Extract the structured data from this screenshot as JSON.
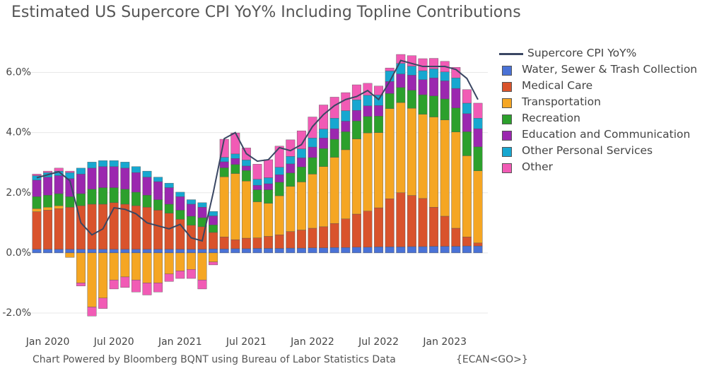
{
  "chart_data": {
    "type": "bar",
    "title": "Estimated US Supercore CPI YoY% Including Topline Contributions",
    "footnote": "Chart Powered by Bloomberg BQNT using Bureau of Labor Statistics Data",
    "code": "{ECAN<GO>}",
    "barmode": "relative",
    "grid": true,
    "x": [
      "2019-12",
      "2020-01",
      "2020-02",
      "2020-03",
      "2020-04",
      "2020-05",
      "2020-06",
      "2020-07",
      "2020-08",
      "2020-09",
      "2020-10",
      "2020-11",
      "2020-12",
      "2021-01",
      "2021-02",
      "2021-03",
      "2021-04",
      "2021-05",
      "2021-06",
      "2021-07",
      "2021-08",
      "2021-09",
      "2021-10",
      "2021-11",
      "2021-12",
      "2022-01",
      "2022-02",
      "2022-03",
      "2022-04",
      "2022-05",
      "2022-06",
      "2022-07",
      "2022-08",
      "2022-09",
      "2022-10",
      "2022-11",
      "2022-12",
      "2023-01",
      "2023-02",
      "2023-03",
      "2023-04"
    ],
    "xticks": [
      {
        "value": "2020-01",
        "label": "Jan 2020"
      },
      {
        "value": "2020-07",
        "label": "Jul 2020"
      },
      {
        "value": "2021-01",
        "label": "Jan 2021"
      },
      {
        "value": "2021-07",
        "label": "Jul 2021"
      },
      {
        "value": "2022-01",
        "label": "Jan 2022"
      },
      {
        "value": "2022-07",
        "label": "Jul 2022"
      },
      {
        "value": "2023-01",
        "label": "Jan 2023"
      }
    ],
    "ylim": [
      -2.4,
      7.0
    ],
    "yticks": [
      {
        "value": -2,
        "label": "-2.0%"
      },
      {
        "value": 0,
        "label": "0.0%"
      },
      {
        "value": 2,
        "label": "2.0%"
      },
      {
        "value": 4,
        "label": "4.0%"
      },
      {
        "value": 6,
        "label": "6.0%"
      }
    ],
    "series": [
      {
        "name": "Supercore CPI YoY%",
        "type": "line",
        "color": "#3a4763",
        "values": [
          2.5,
          2.6,
          2.7,
          2.4,
          1.0,
          0.6,
          0.8,
          1.5,
          1.45,
          1.3,
          1.0,
          0.9,
          0.8,
          0.95,
          0.5,
          0.4,
          2.0,
          3.8,
          4.0,
          3.3,
          3.05,
          3.1,
          3.5,
          3.4,
          3.6,
          4.2,
          4.6,
          4.9,
          5.1,
          5.2,
          5.4,
          5.1,
          5.7,
          6.4,
          6.3,
          6.2,
          6.2,
          6.2,
          6.1,
          5.8,
          5.1
        ]
      },
      {
        "name": "Water, Sewer & Trash Collection",
        "type": "bar",
        "color": "#4a72d6",
        "values": [
          0.12,
          0.12,
          0.12,
          0.12,
          0.12,
          0.12,
          0.12,
          0.12,
          0.12,
          0.12,
          0.12,
          0.12,
          0.12,
          0.12,
          0.12,
          0.12,
          0.13,
          0.13,
          0.14,
          0.14,
          0.15,
          0.15,
          0.15,
          0.16,
          0.16,
          0.17,
          0.17,
          0.18,
          0.18,
          0.19,
          0.19,
          0.2,
          0.2,
          0.2,
          0.21,
          0.21,
          0.22,
          0.22,
          0.22,
          0.23,
          0.23
        ]
      },
      {
        "name": "Medical Care",
        "type": "bar",
        "color": "#d9532c",
        "values": [
          1.25,
          1.3,
          1.35,
          1.4,
          1.45,
          1.5,
          1.5,
          1.55,
          1.5,
          1.45,
          1.4,
          1.3,
          1.2,
          1.0,
          0.8,
          0.75,
          0.55,
          0.4,
          0.3,
          0.35,
          0.35,
          0.4,
          0.45,
          0.55,
          0.6,
          0.65,
          0.7,
          0.8,
          0.95,
          1.1,
          1.2,
          1.3,
          1.6,
          1.8,
          1.7,
          1.6,
          1.3,
          1.0,
          0.6,
          0.3,
          0.1
        ]
      },
      {
        "name": "Transportation",
        "type": "bar",
        "color": "#f5a623",
        "values": [
          0.1,
          0.1,
          0.1,
          -0.15,
          -1.0,
          -1.8,
          -1.5,
          -0.9,
          -0.8,
          -0.9,
          -1.0,
          -1.0,
          -0.7,
          -0.6,
          -0.55,
          -0.9,
          -0.3,
          2.0,
          2.2,
          1.9,
          1.2,
          1.1,
          1.3,
          1.5,
          1.6,
          1.8,
          2.0,
          2.2,
          2.3,
          2.5,
          2.6,
          2.5,
          3.0,
          3.0,
          2.9,
          2.8,
          3.0,
          3.2,
          3.2,
          2.7,
          2.4
        ]
      },
      {
        "name": "Recreation",
        "type": "bar",
        "color": "#2ca02c",
        "values": [
          0.4,
          0.4,
          0.4,
          0.35,
          0.4,
          0.5,
          0.55,
          0.5,
          0.5,
          0.45,
          0.4,
          0.35,
          0.3,
          0.3,
          0.3,
          0.3,
          0.25,
          0.3,
          0.3,
          0.35,
          0.4,
          0.45,
          0.45,
          0.45,
          0.5,
          0.55,
          0.6,
          0.6,
          0.6,
          0.6,
          0.55,
          0.55,
          0.5,
          0.5,
          0.6,
          0.65,
          0.7,
          0.7,
          0.8,
          0.8,
          0.8
        ]
      },
      {
        "name": "Education and Communication",
        "type": "bar",
        "color": "#9b27af",
        "values": [
          0.55,
          0.6,
          0.6,
          0.6,
          0.65,
          0.7,
          0.7,
          0.7,
          0.7,
          0.65,
          0.6,
          0.6,
          0.55,
          0.45,
          0.4,
          0.35,
          0.3,
          0.2,
          0.2,
          0.15,
          0.15,
          0.2,
          0.25,
          0.3,
          0.3,
          0.35,
          0.35,
          0.35,
          0.35,
          0.35,
          0.35,
          0.35,
          0.4,
          0.45,
          0.5,
          0.5,
          0.6,
          0.6,
          0.65,
          0.6,
          0.6
        ]
      },
      {
        "name": "Other Personal Services",
        "type": "bar",
        "color": "#17a7d0",
        "values": [
          0.15,
          0.15,
          0.15,
          0.2,
          0.2,
          0.2,
          0.2,
          0.2,
          0.2,
          0.2,
          0.2,
          0.15,
          0.15,
          0.15,
          0.15,
          0.15,
          0.15,
          0.15,
          0.15,
          0.2,
          0.2,
          0.2,
          0.25,
          0.25,
          0.3,
          0.3,
          0.3,
          0.35,
          0.35,
          0.35,
          0.35,
          0.35,
          0.35,
          0.35,
          0.3,
          0.3,
          0.3,
          0.3,
          0.35,
          0.35,
          0.35
        ]
      },
      {
        "name": "Other",
        "type": "bar",
        "color": "#f15bb5",
        "values": [
          0.05,
          0.05,
          0.1,
          0.05,
          -0.1,
          -0.3,
          -0.35,
          -0.3,
          -0.35,
          -0.4,
          -0.4,
          -0.3,
          -0.25,
          -0.25,
          -0.3,
          -0.3,
          -0.1,
          0.6,
          0.7,
          0.4,
          0.5,
          0.6,
          0.7,
          0.55,
          0.6,
          0.7,
          0.8,
          0.7,
          0.6,
          0.5,
          0.4,
          0.3,
          0.1,
          0.3,
          0.35,
          0.4,
          0.35,
          0.35,
          0.35,
          0.45,
          0.5
        ]
      }
    ]
  }
}
